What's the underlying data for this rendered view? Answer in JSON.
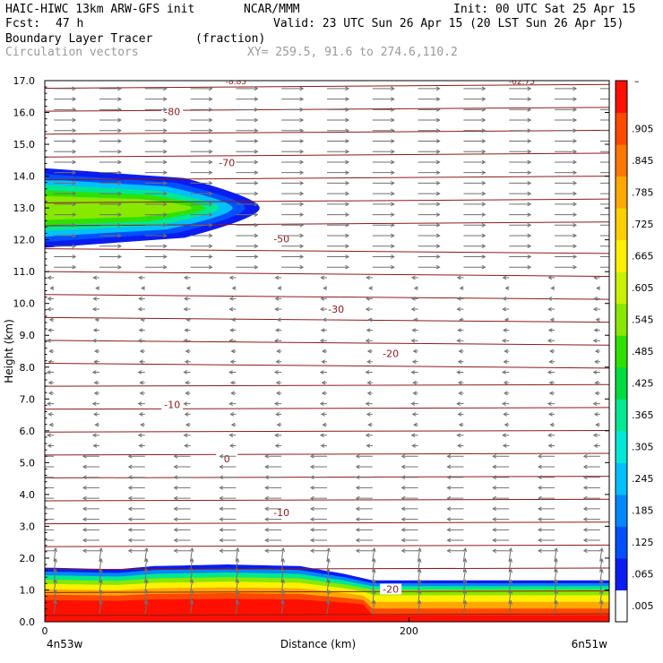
{
  "header": {
    "model": "HAIC-HIWC 13km ARW-GFS init",
    "org": "NCAR/MMM",
    "init": "Init: 00 UTC Sat 25 Apr 15",
    "fcst_label": "Fcst:",
    "fcst_value": "47 h",
    "valid": "Valid: 23 UTC Sun 26 Apr 15 (20 LST Sun 26 Apr 15)",
    "field": "Boundary Layer Tracer",
    "field_units": "(fraction)",
    "overlay": "Circulation vectors",
    "xy": "XY= 259.5, 91.6 to 274.6,110.2"
  },
  "chart_data": {
    "type": "heatmap",
    "title": "Boundary Layer Tracer",
    "units": "(fraction)",
    "ylabel": "Height (km)",
    "xlabel": "Distance (km)",
    "ylim": [
      0,
      17
    ],
    "y_ticks": [
      "0.0",
      "1.0",
      "2.0",
      "3.0",
      "4.0",
      "5.0",
      "6.0",
      "7.0",
      "8.0",
      "9.0",
      "10.0",
      "11.0",
      "12.0",
      "13.0",
      "14.0",
      "15.0",
      "16.0",
      "17.0"
    ],
    "xlim": [
      0,
      310
    ],
    "x_ticks": [
      {
        "value": 0,
        "label": "0"
      },
      {
        "value": 200,
        "label": "200"
      }
    ],
    "x_end_labels": {
      "left": "4n53w",
      "right": "6n51w"
    },
    "colorbar": {
      "labels": [
        ".005",
        ".065",
        ".125",
        ".185",
        ".245",
        ".305",
        ".365",
        ".425",
        ".485",
        ".545",
        ".605",
        ".665",
        ".725",
        ".785",
        ".845",
        ".905"
      ],
      "top_label": "–",
      "colors": [
        "#ffffff",
        "#0a1cf0",
        "#0050ff",
        "#0088ff",
        "#00c0ff",
        "#00e8d8",
        "#00e890",
        "#00dc40",
        "#30e000",
        "#88e800",
        "#c8f000",
        "#fff000",
        "#ffd000",
        "#ffa800",
        "#ff7800",
        "#ff4800",
        "#ff1000"
      ]
    },
    "temperature_contours": [
      {
        "label": "-80",
        "height_km": 16.0
      },
      {
        "label": "-70",
        "height_km": 14.4
      },
      {
        "label": "-50",
        "height_km": 12.0
      },
      {
        "label": "-30",
        "height_km": 9.8
      },
      {
        "label": "-20",
        "height_km": 8.4
      },
      {
        "label": "-10",
        "height_km": 6.8
      },
      {
        "label": "0",
        "height_km": 5.1
      },
      {
        "label": "-10",
        "height_km": 3.4
      },
      {
        "label": "-20",
        "height_km": 1.0
      }
    ],
    "top_edge_labels": [
      "-8.85",
      "-62.75"
    ],
    "upper_plume": {
      "x_start": 0,
      "x_tip": 118,
      "z_center": 13.0,
      "z_half_depth": 1.25
    },
    "boundary_layer_top": [
      {
        "x": 0,
        "z": 1.7
      },
      {
        "x": 40,
        "z": 1.65
      },
      {
        "x": 60,
        "z": 1.75
      },
      {
        "x": 100,
        "z": 1.8
      },
      {
        "x": 140,
        "z": 1.75
      },
      {
        "x": 165,
        "z": 1.5
      },
      {
        "x": 180,
        "z": 1.3
      },
      {
        "x": 250,
        "z": 1.3
      },
      {
        "x": 310,
        "z": 1.3
      }
    ],
    "wind_regimes": [
      {
        "z_from": 11.0,
        "z_to": 17.0,
        "direction": "east",
        "speed": "strong"
      },
      {
        "z_from": 5.5,
        "z_to": 11.0,
        "direction": "west",
        "speed": "weak"
      },
      {
        "z_from": 2.0,
        "z_to": 5.5,
        "direction": "west",
        "speed": "moderate"
      },
      {
        "z_from": 0.0,
        "z_to": 2.0,
        "direction": "vertical",
        "speed": "moderate"
      }
    ]
  }
}
